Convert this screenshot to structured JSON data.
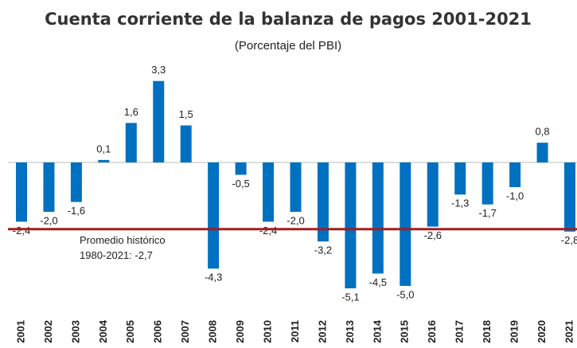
{
  "chart_data": {
    "type": "bar",
    "title": "Cuenta corriente de la balanza de pagos 2001-2021",
    "subtitle": "(Porcentaje del PBI)",
    "categories": [
      "2001",
      "2002",
      "2003",
      "2004",
      "2005",
      "2006",
      "2007",
      "2008",
      "2009",
      "2010",
      "2011",
      "2012",
      "2013",
      "2014",
      "2015",
      "2016",
      "2017",
      "2018",
      "2019",
      "2020",
      "2021"
    ],
    "values": [
      -2.4,
      -2.0,
      -1.6,
      0.1,
      1.6,
      3.3,
      1.5,
      -4.3,
      -0.5,
      -2.4,
      -2.0,
      -3.2,
      -5.1,
      -4.5,
      -5.0,
      -2.6,
      -1.3,
      -1.7,
      -1.0,
      0.8,
      -2.8
    ],
    "value_labels": [
      "-2,4",
      "-2,0",
      "-1,6",
      "0,1",
      "1,6",
      "3,3",
      "1,5",
      "-4,3",
      "-0,5",
      "-2,4",
      "-2,0",
      "-3,2",
      "-5,1",
      "-4,5",
      "-5,0",
      "-2,6",
      "-1,3",
      "-1,7",
      "-1,0",
      "0,8",
      "-2,8"
    ],
    "color": "#0070c0",
    "ylim": [
      -6,
      4
    ],
    "reference_line": {
      "value": -2.7,
      "color": "#a31d1d",
      "label_lines": [
        "Promedio histórico",
        "1980-2021: -2,7"
      ]
    }
  }
}
